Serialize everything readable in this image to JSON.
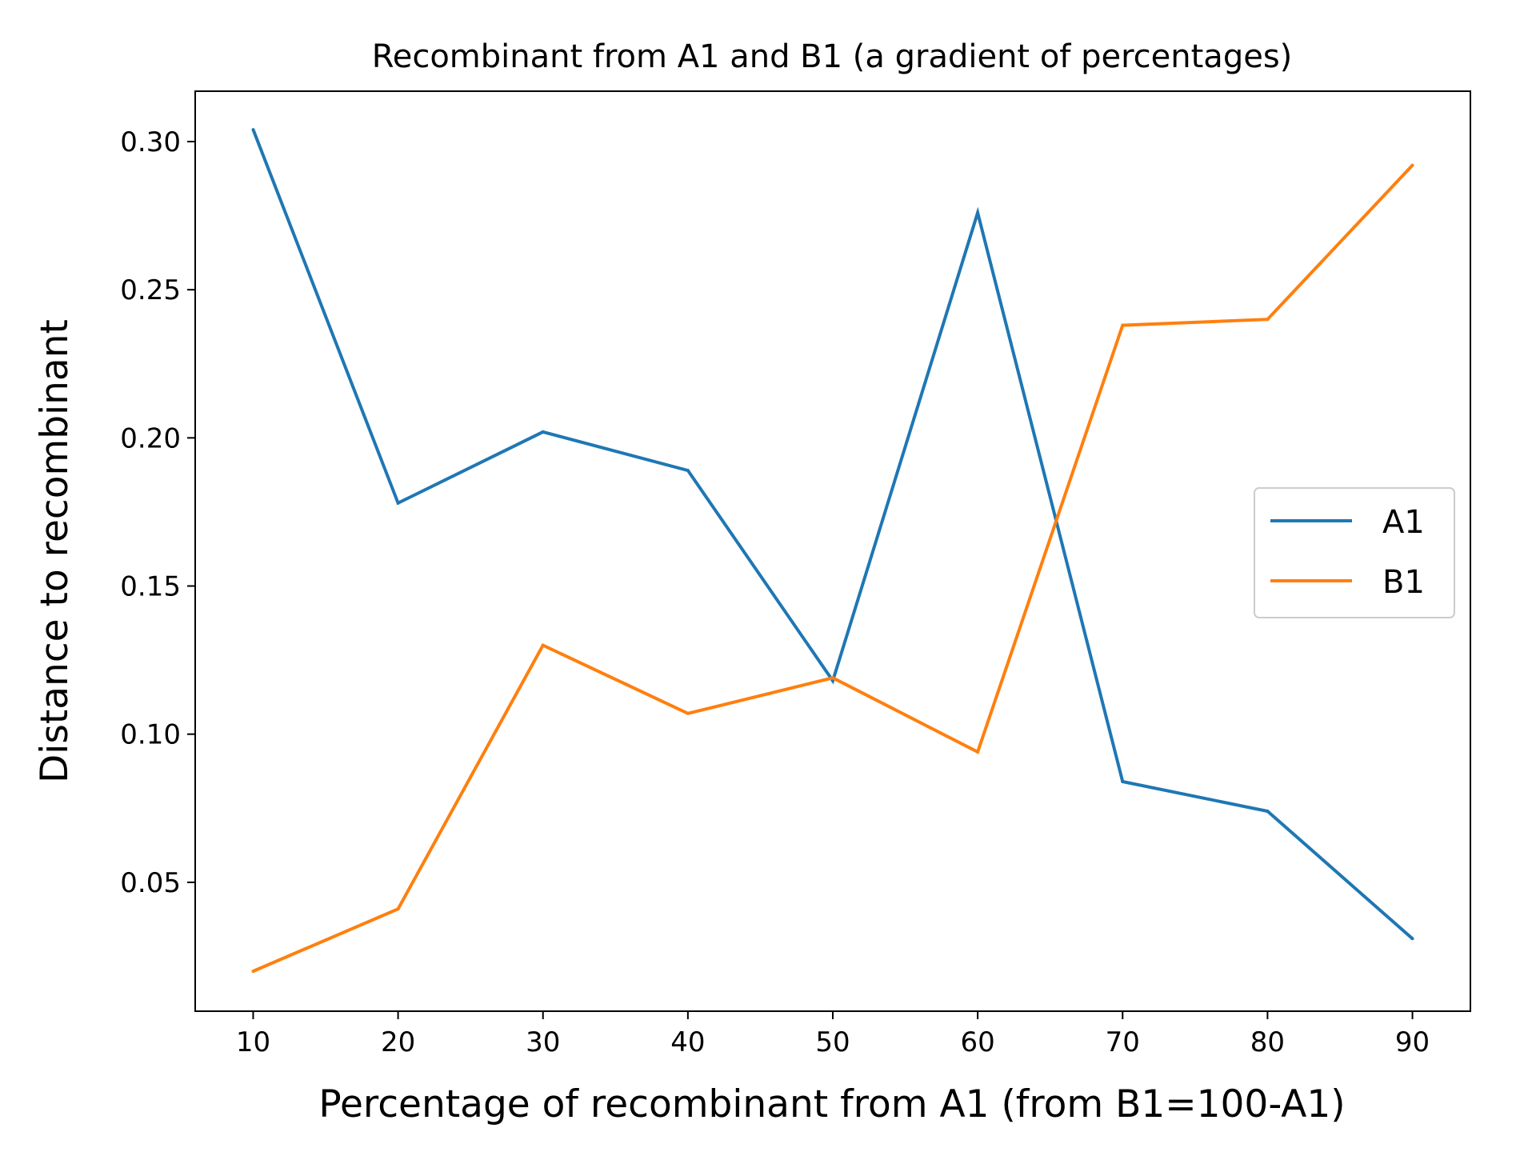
{
  "chart_data": {
    "type": "line",
    "title": "Recombinant from A1 and B1 (a gradient of percentages)",
    "xlabel": "Percentage of recombinant from A1 (from B1=100-A1)",
    "ylabel": "Distance to recombinant",
    "x": [
      10,
      20,
      30,
      40,
      50,
      60,
      70,
      80,
      90
    ],
    "xlim": [
      6,
      94
    ],
    "ylim": [
      0.0065,
      0.317
    ],
    "xticks": [
      10,
      20,
      30,
      40,
      50,
      60,
      70,
      80,
      90
    ],
    "yticks": [
      0.05,
      0.1,
      0.15,
      0.2,
      0.25,
      0.3
    ],
    "ytick_labels": [
      "0.05",
      "0.10",
      "0.15",
      "0.20",
      "0.25",
      "0.30"
    ],
    "grid": false,
    "legend_position": "center-right",
    "series": [
      {
        "name": "A1",
        "color": "#1f77b4",
        "values": [
          0.304,
          0.178,
          0.202,
          0.189,
          0.118,
          0.276,
          0.084,
          0.074,
          0.031
        ]
      },
      {
        "name": "B1",
        "color": "#ff7f0e",
        "values": [
          0.02,
          0.041,
          0.13,
          0.107,
          0.119,
          0.094,
          0.238,
          0.24,
          0.292
        ]
      }
    ]
  }
}
